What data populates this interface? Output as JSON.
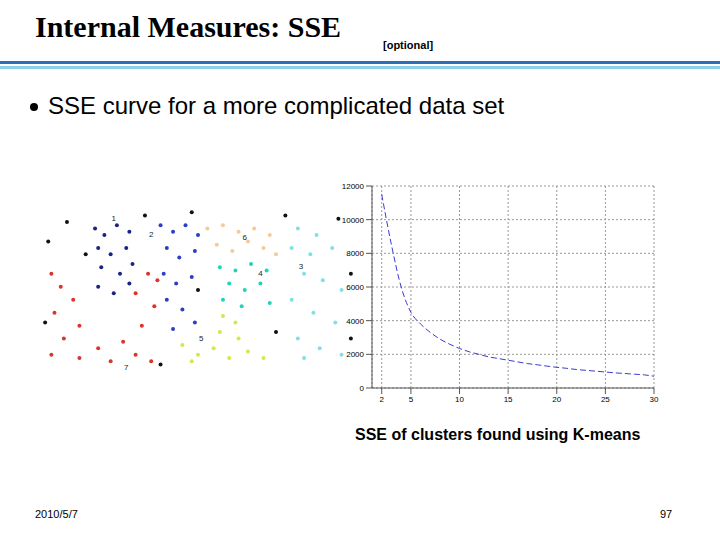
{
  "slide": {
    "title": "Internal Measures: SSE",
    "tag": "[optional]",
    "bullet": "SSE curve for a more complicated data set",
    "caption": "SSE of clusters found using K-means",
    "footer_date": "2010/5/7",
    "page": "97"
  },
  "chart_data": [
    {
      "type": "scatter",
      "xlim": [
        0,
        100
      ],
      "ylim": [
        0,
        50
      ],
      "tick_labels": false,
      "marker": "circle",
      "series": [
        {
          "name": "7",
          "color": "#d9352b",
          "x": [
            3,
            6,
            10,
            4,
            12,
            7,
            3,
            12,
            18,
            22,
            26,
            30,
            35,
            32,
            36,
            30,
            34,
            37
          ],
          "values": [
            30,
            26,
            22,
            18,
            14,
            10,
            5,
            4,
            7,
            3,
            9,
            5,
            3,
            14,
            20,
            24,
            30,
            28
          ],
          "label_at": [
            27,
            1
          ]
        },
        {
          "name": "1",
          "color": "#1a237e",
          "x": [
            17,
            20,
            24,
            28,
            18,
            22,
            27,
            19,
            25,
            29,
            18,
            23,
            28
          ],
          "values": [
            44,
            42,
            45,
            43,
            38,
            36,
            38,
            32,
            30,
            33,
            26,
            24,
            27
          ],
          "label_at": [
            23,
            47
          ]
        },
        {
          "name": "2",
          "color": "#2b3fc4",
          "x": [
            38,
            42,
            46,
            50,
            40,
            44,
            49,
            39,
            43,
            48,
            40,
            45,
            49,
            42
          ],
          "values": [
            45,
            43,
            45,
            42,
            38,
            35,
            37,
            30,
            27,
            29,
            22,
            19,
            15,
            13
          ],
          "label_at": [
            35,
            42
          ]
        },
        {
          "name": "6",
          "color": "#f5c99a",
          "x": [
            53,
            58,
            63,
            68,
            73,
            56,
            61,
            66,
            71,
            75
          ],
          "values": [
            44,
            45,
            43,
            44,
            42,
            39,
            37,
            40,
            38,
            36
          ],
          "label_at": [
            65,
            41
          ]
        },
        {
          "name": "4",
          "color": "#22d3b8",
          "x": [
            57,
            62,
            67,
            72,
            60,
            65,
            70,
            58,
            64,
            73
          ],
          "values": [
            32,
            31,
            33,
            31,
            27,
            25,
            27,
            22,
            20,
            21
          ],
          "label_at": [
            70,
            30
          ]
        },
        {
          "name": "5",
          "color": "#d4e84a",
          "x": [
            58,
            62,
            57,
            63,
            45,
            50,
            55,
            60,
            66,
            71,
            48
          ],
          "values": [
            17,
            15,
            12,
            10,
            8,
            5,
            7,
            4,
            6,
            4,
            3
          ],
          "label_at": [
            51,
            10
          ]
        },
        {
          "name": "3",
          "color": "#7fe0e8",
          "x": [
            82,
            88,
            80,
            86,
            93,
            84,
            90,
            96,
            80,
            87,
            94,
            82,
            89,
            96,
            84
          ],
          "values": [
            44,
            42,
            38,
            36,
            38,
            30,
            28,
            25,
            22,
            18,
            15,
            10,
            7,
            5,
            4
          ],
          "label_at": [
            83,
            32
          ]
        },
        {
          "color": "#111111",
          "x": [
            2,
            8,
            33,
            48,
            78,
            95,
            99,
            1,
            38,
            75,
            99,
            14,
            50
          ],
          "values": [
            40,
            46,
            48,
            49,
            48,
            47,
            30,
            15,
            2,
            12,
            10,
            36,
            25
          ]
        }
      ]
    },
    {
      "type": "line",
      "x": [
        2,
        3,
        4,
        5,
        6,
        7,
        8,
        9,
        10,
        11,
        12,
        13,
        14,
        15,
        16,
        17,
        18,
        19,
        20,
        21,
        22,
        23,
        24,
        25,
        26,
        27,
        28,
        29,
        30
      ],
      "values": [
        11500,
        8500,
        6000,
        4500,
        3800,
        3300,
        2900,
        2600,
        2350,
        2150,
        2000,
        1850,
        1750,
        1650,
        1550,
        1450,
        1380,
        1300,
        1230,
        1170,
        1100,
        1050,
        1000,
        950,
        900,
        860,
        820,
        780,
        700
      ],
      "xlim": [
        1,
        30
      ],
      "xticks": [
        2,
        5,
        10,
        15,
        20,
        25,
        30
      ],
      "ylim": [
        0,
        12000
      ],
      "yticks": [
        0,
        2000,
        4000,
        6000,
        8000,
        10000,
        12000
      ],
      "grid": true,
      "color": "#3b3bd1",
      "line_style": "dashed"
    }
  ]
}
